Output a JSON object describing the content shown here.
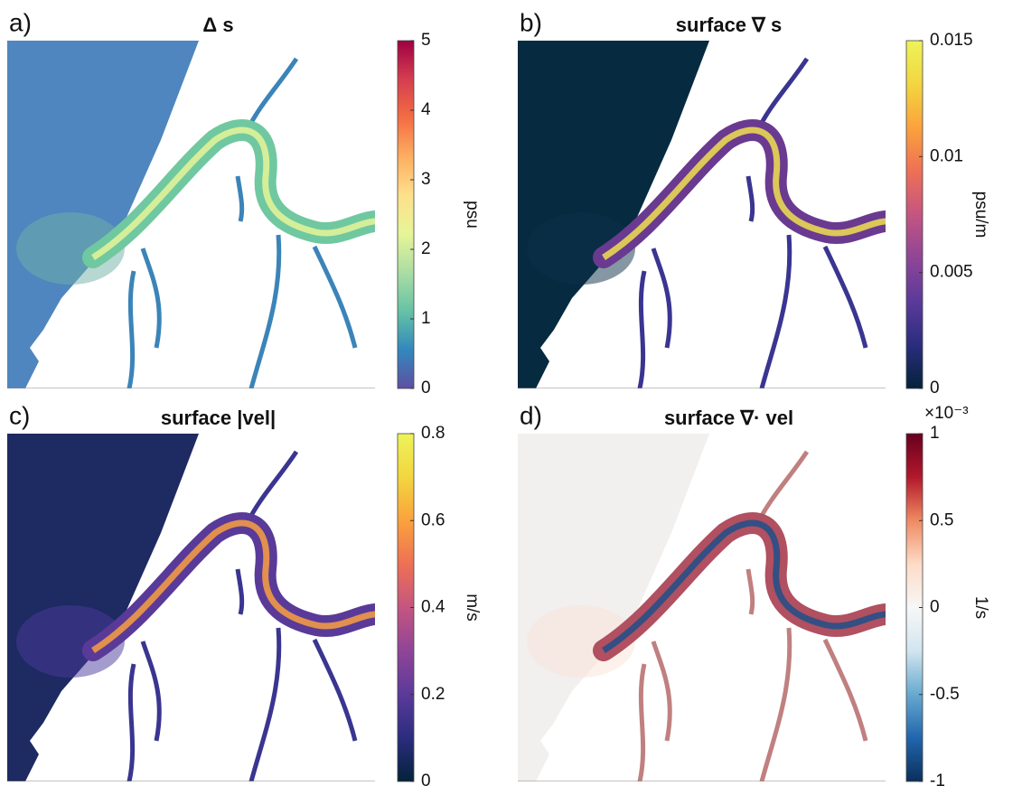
{
  "chart_data": [
    {
      "type": "map",
      "panel": "a)",
      "title": "Δ s",
      "colorbar_label": "psu",
      "clim": [
        0,
        5
      ],
      "cticks": [
        0,
        1,
        2,
        3,
        4,
        5
      ],
      "colormap": [
        "#5e4fa2",
        "#3288bd",
        "#66c2a5",
        "#abdda4",
        "#e6f598",
        "#fee08b",
        "#fdae61",
        "#f46d43",
        "#d53e4f",
        "#9e0142"
      ]
    },
    {
      "type": "map",
      "panel": "b)",
      "title": "surface ∇ s",
      "colorbar_label": "psu/m",
      "clim": [
        0,
        0.015
      ],
      "cticks": [
        0,
        0.005,
        0.01,
        0.015
      ],
      "colormap": [
        "#03223a",
        "#2b2d7e",
        "#5b3a9a",
        "#8f4597",
        "#c45580",
        "#ee7055",
        "#fba23d",
        "#f2d640",
        "#eef35a"
      ]
    },
    {
      "type": "map",
      "panel": "c)",
      "title": "surface |vel|",
      "colorbar_label": "m/s",
      "clim": [
        0,
        0.8
      ],
      "cticks": [
        0,
        0.2,
        0.4,
        0.6,
        0.8
      ],
      "colormap": [
        "#03223a",
        "#2b2d7e",
        "#5b3a9a",
        "#8f4597",
        "#c45580",
        "#ee7055",
        "#fba23d",
        "#f2d640",
        "#eef35a"
      ]
    },
    {
      "type": "map",
      "panel": "d)",
      "title": "surface ∇· vel",
      "colorbar_label": "1/s",
      "clim": [
        -1,
        1
      ],
      "cticks": [
        -1,
        -0.5,
        0,
        0.5,
        1
      ],
      "multiplier": "×10⁻³",
      "colormap": [
        "#0a2f5c",
        "#2166ac",
        "#67a9cf",
        "#d1e5f0",
        "#f7f7f7",
        "#fddbc7",
        "#ef8a62",
        "#b2182b",
        "#67001f"
      ]
    }
  ]
}
